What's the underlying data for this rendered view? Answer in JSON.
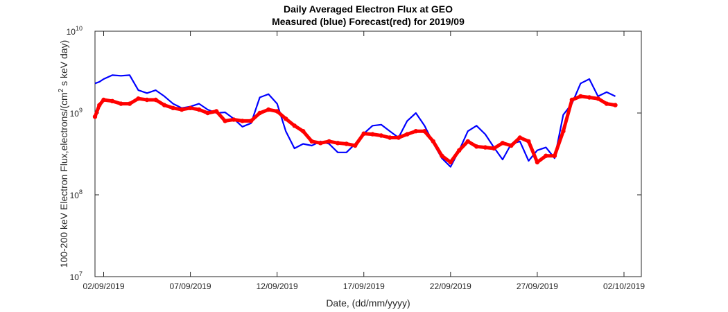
{
  "chart_data": {
    "type": "line",
    "title": "Daily Averaged Electron Flux at GEO",
    "subtitle": "Measured (blue) Forecast(red) for 2019/09",
    "xlabel": "Date, (dd/mm/yyyy)",
    "ylabel": "100-200 keV Electron Flux,electrons/(cm^2 s keV day)",
    "ylabel_parts": {
      "pre": "100-200 keV Electron Flux,electrons/(cm",
      "sup": "2",
      "post": " s keV day)"
    },
    "y_scale": "log",
    "ylim": [
      10000000,
      10000000000
    ],
    "xlim": [
      "2019-09-01T12:00",
      "2019-10-03T00:00"
    ],
    "x_ticks": [
      "02/09/2019",
      "07/09/2019",
      "12/09/2019",
      "17/09/2019",
      "22/09/2019",
      "27/09/2019",
      "02/10/2019"
    ],
    "y_ticks": [
      {
        "base": "10",
        "exp": "7"
      },
      {
        "base": "10",
        "exp": "8"
      },
      {
        "base": "10",
        "exp": "9"
      },
      {
        "base": "10",
        "exp": "10"
      }
    ],
    "grid": false,
    "series": [
      {
        "name": "Measured",
        "color": "#0000ff",
        "style": "line",
        "points": [
          [
            "2019-09-01T12:00",
            2300000000.0
          ],
          [
            "2019-09-01T18:00",
            2400000000.0
          ],
          [
            "2019-09-02T00:00",
            2600000000.0
          ],
          [
            "2019-09-02T12:00",
            2900000000.0
          ],
          [
            "2019-09-03T00:00",
            2850000000.0
          ],
          [
            "2019-09-03T12:00",
            2900000000.0
          ],
          [
            "2019-09-04T00:00",
            1900000000.0
          ],
          [
            "2019-09-04T12:00",
            1750000000.0
          ],
          [
            "2019-09-05T00:00",
            1900000000.0
          ],
          [
            "2019-09-05T12:00",
            1600000000.0
          ],
          [
            "2019-09-06T00:00",
            1300000000.0
          ],
          [
            "2019-09-06T12:00",
            1150000000.0
          ],
          [
            "2019-09-07T00:00",
            1200000000.0
          ],
          [
            "2019-09-07T12:00",
            1300000000.0
          ],
          [
            "2019-09-08T00:00",
            1100000000.0
          ],
          [
            "2019-09-08T12:00",
            1000000000.0
          ],
          [
            "2019-09-09T00:00",
            1020000000.0
          ],
          [
            "2019-09-09T12:00",
            850000000.0
          ],
          [
            "2019-09-10T00:00",
            680000000.0
          ],
          [
            "2019-09-10T12:00",
            750000000.0
          ],
          [
            "2019-09-11T00:00",
            1550000000.0
          ],
          [
            "2019-09-11T12:00",
            1700000000.0
          ],
          [
            "2019-09-12T00:00",
            1300000000.0
          ],
          [
            "2019-09-12T12:00",
            600000000.0
          ],
          [
            "2019-09-13T00:00",
            370000000.0
          ],
          [
            "2019-09-13T12:00",
            420000000.0
          ],
          [
            "2019-09-14T00:00",
            400000000.0
          ],
          [
            "2019-09-14T12:00",
            450000000.0
          ],
          [
            "2019-09-15T00:00",
            420000000.0
          ],
          [
            "2019-09-15T12:00",
            330000000.0
          ],
          [
            "2019-09-16T00:00",
            330000000.0
          ],
          [
            "2019-09-16T12:00",
            420000000.0
          ],
          [
            "2019-09-17T00:00",
            560000000.0
          ],
          [
            "2019-09-17T12:00",
            700000000.0
          ],
          [
            "2019-09-18T00:00",
            720000000.0
          ],
          [
            "2019-09-18T12:00",
            600000000.0
          ],
          [
            "2019-09-19T00:00",
            500000000.0
          ],
          [
            "2019-09-19T12:00",
            800000000.0
          ],
          [
            "2019-09-20T00:00",
            1000000000.0
          ],
          [
            "2019-09-20T12:00",
            700000000.0
          ],
          [
            "2019-09-21T00:00",
            430000000.0
          ],
          [
            "2019-09-21T12:00",
            280000000.0
          ],
          [
            "2019-09-22T00:00",
            220000000.0
          ],
          [
            "2019-09-22T12:00",
            350000000.0
          ],
          [
            "2019-09-23T00:00",
            600000000.0
          ],
          [
            "2019-09-23T12:00",
            700000000.0
          ],
          [
            "2019-09-24T00:00",
            550000000.0
          ],
          [
            "2019-09-24T12:00",
            380000000.0
          ],
          [
            "2019-09-25T00:00",
            270000000.0
          ],
          [
            "2019-09-25T12:00",
            420000000.0
          ],
          [
            "2019-09-26T00:00",
            450000000.0
          ],
          [
            "2019-09-26T12:00",
            260000000.0
          ],
          [
            "2019-09-27T00:00",
            350000000.0
          ],
          [
            "2019-09-27T12:00",
            380000000.0
          ],
          [
            "2019-09-28T00:00",
            280000000.0
          ],
          [
            "2019-09-28T12:00",
            950000000.0
          ],
          [
            "2019-09-29T00:00",
            1300000000.0
          ],
          [
            "2019-09-29T12:00",
            2300000000.0
          ],
          [
            "2019-09-30T00:00",
            2600000000.0
          ],
          [
            "2019-09-30T12:00",
            1600000000.0
          ],
          [
            "2019-10-01T00:00",
            1800000000.0
          ],
          [
            "2019-10-01T12:00",
            1600000000.0
          ]
        ]
      },
      {
        "name": "Forecast",
        "color": "#ff0000",
        "style": "dots",
        "points": [
          [
            "2019-09-01T12:00",
            900000000.0
          ],
          [
            "2019-09-01T18:00",
            1250000000.0
          ],
          [
            "2019-09-02T00:00",
            1450000000.0
          ],
          [
            "2019-09-02T12:00",
            1400000000.0
          ],
          [
            "2019-09-03T00:00",
            1300000000.0
          ],
          [
            "2019-09-03T12:00",
            1300000000.0
          ],
          [
            "2019-09-04T00:00",
            1500000000.0
          ],
          [
            "2019-09-04T12:00",
            1450000000.0
          ],
          [
            "2019-09-05T00:00",
            1450000000.0
          ],
          [
            "2019-09-05T12:00",
            1250000000.0
          ],
          [
            "2019-09-06T00:00",
            1150000000.0
          ],
          [
            "2019-09-06T12:00",
            1100000000.0
          ],
          [
            "2019-09-07T00:00",
            1150000000.0
          ],
          [
            "2019-09-07T12:00",
            1100000000.0
          ],
          [
            "2019-09-08T00:00",
            1000000000.0
          ],
          [
            "2019-09-08T12:00",
            1050000000.0
          ],
          [
            "2019-09-09T00:00",
            800000000.0
          ],
          [
            "2019-09-09T12:00",
            830000000.0
          ],
          [
            "2019-09-10T00:00",
            800000000.0
          ],
          [
            "2019-09-10T12:00",
            800000000.0
          ],
          [
            "2019-09-11T00:00",
            1000000000.0
          ],
          [
            "2019-09-11T12:00",
            1100000000.0
          ],
          [
            "2019-09-12T00:00",
            1050000000.0
          ],
          [
            "2019-09-12T12:00",
            850000000.0
          ],
          [
            "2019-09-13T00:00",
            700000000.0
          ],
          [
            "2019-09-13T12:00",
            600000000.0
          ],
          [
            "2019-09-14T00:00",
            450000000.0
          ],
          [
            "2019-09-14T12:00",
            430000000.0
          ],
          [
            "2019-09-15T00:00",
            450000000.0
          ],
          [
            "2019-09-15T12:00",
            430000000.0
          ],
          [
            "2019-09-16T00:00",
            420000000.0
          ],
          [
            "2019-09-16T12:00",
            400000000.0
          ],
          [
            "2019-09-17T00:00",
            560000000.0
          ],
          [
            "2019-09-17T12:00",
            550000000.0
          ],
          [
            "2019-09-18T00:00",
            530000000.0
          ],
          [
            "2019-09-18T12:00",
            500000000.0
          ],
          [
            "2019-09-19T00:00",
            500000000.0
          ],
          [
            "2019-09-19T12:00",
            550000000.0
          ],
          [
            "2019-09-20T00:00",
            600000000.0
          ],
          [
            "2019-09-20T12:00",
            600000000.0
          ],
          [
            "2019-09-21T00:00",
            450000000.0
          ],
          [
            "2019-09-21T12:00",
            300000000.0
          ],
          [
            "2019-09-22T00:00",
            250000000.0
          ],
          [
            "2019-09-22T12:00",
            350000000.0
          ],
          [
            "2019-09-23T00:00",
            450000000.0
          ],
          [
            "2019-09-23T12:00",
            390000000.0
          ],
          [
            "2019-09-24T00:00",
            380000000.0
          ],
          [
            "2019-09-24T12:00",
            370000000.0
          ],
          [
            "2019-09-25T00:00",
            430000000.0
          ],
          [
            "2019-09-25T12:00",
            400000000.0
          ],
          [
            "2019-09-26T00:00",
            500000000.0
          ],
          [
            "2019-09-26T12:00",
            450000000.0
          ],
          [
            "2019-09-27T00:00",
            250000000.0
          ],
          [
            "2019-09-27T12:00",
            300000000.0
          ],
          [
            "2019-09-28T00:00",
            300000000.0
          ],
          [
            "2019-09-28T12:00",
            600000000.0
          ],
          [
            "2019-09-29T00:00",
            1450000000.0
          ],
          [
            "2019-09-29T12:00",
            1600000000.0
          ],
          [
            "2019-09-30T00:00",
            1550000000.0
          ],
          [
            "2019-09-30T12:00",
            1500000000.0
          ],
          [
            "2019-10-01T00:00",
            1300000000.0
          ],
          [
            "2019-10-01T12:00",
            1250000000.0
          ]
        ]
      }
    ]
  }
}
